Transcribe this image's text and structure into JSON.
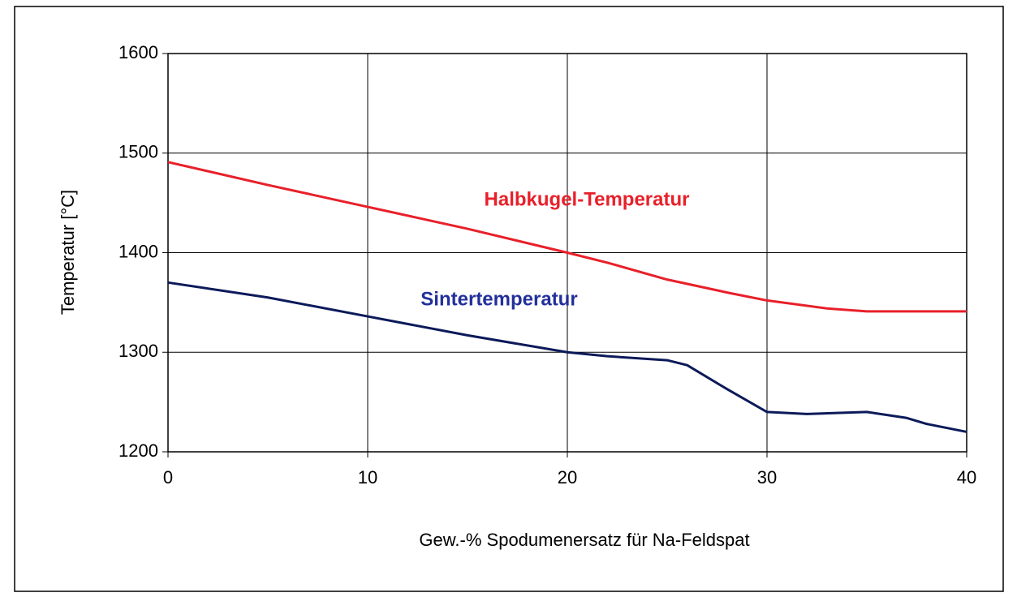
{
  "chart_data": {
    "type": "line",
    "xlabel": "Gew.-% Spodumenersatz für Na-Feldspat",
    "ylabel": "Temperatur [°C]",
    "xlim": [
      0,
      40
    ],
    "xticks": [
      0,
      10,
      20,
      30,
      40
    ],
    "ylim": [
      1200,
      1600
    ],
    "yticks": [
      1200,
      1300,
      1400,
      1500,
      1600
    ],
    "grid": true,
    "series": [
      {
        "name": "Halbkugel-Temperatur",
        "color": "#e8202a",
        "x": [
          0,
          5,
          10,
          15,
          20,
          22,
          25,
          28,
          30,
          33,
          35,
          40
        ],
        "values": [
          1491,
          1468,
          1446,
          1424,
          1400,
          1390,
          1373,
          1360,
          1352,
          1344,
          1341,
          1341
        ]
      },
      {
        "name": "Sintertemperatur",
        "color": "#0c1a5a",
        "x": [
          0,
          5,
          10,
          15,
          20,
          22,
          25,
          26,
          28,
          30,
          32,
          35,
          37,
          38,
          40
        ],
        "values": [
          1370,
          1355,
          1336,
          1317,
          1300,
          1296,
          1292,
          1287,
          1263,
          1240,
          1238,
          1240,
          1234,
          1228,
          1220
        ]
      }
    ]
  }
}
